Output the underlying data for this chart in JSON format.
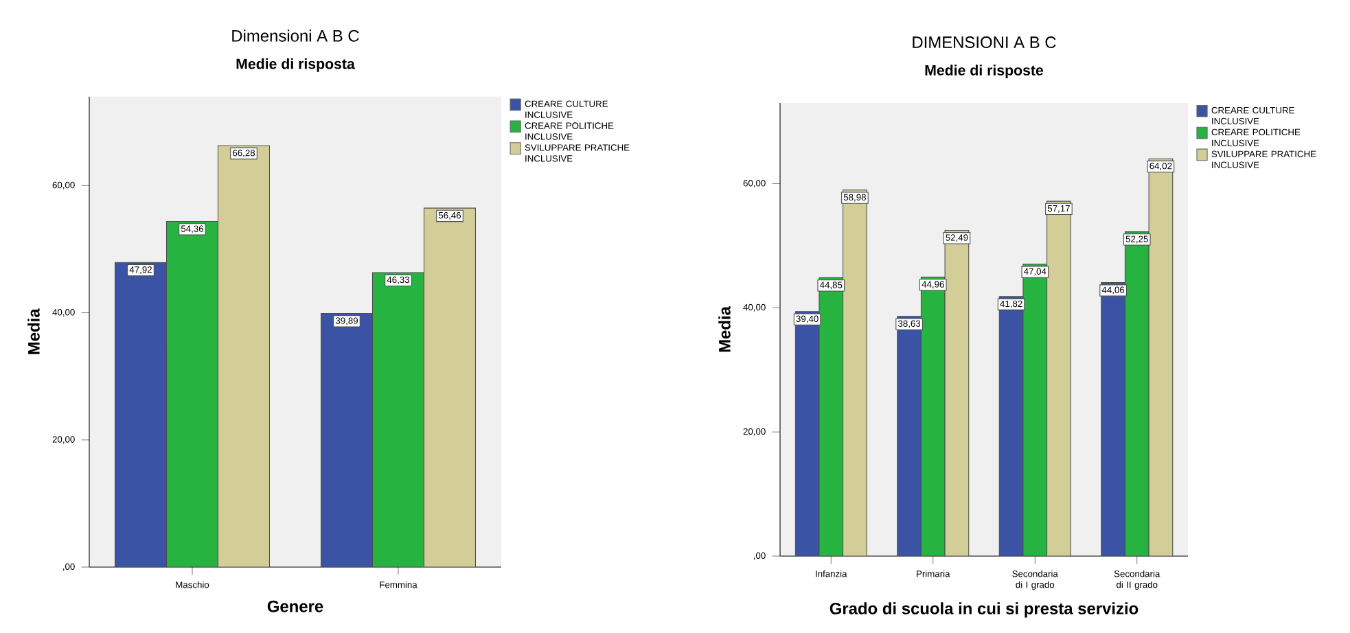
{
  "chart_data": [
    {
      "type": "bar",
      "title": "Dimensioni A B C",
      "subtitle": "Medie di risposta",
      "xlabel": "Genere",
      "ylabel": "Media",
      "categories": [
        "Maschio",
        "Femmina"
      ],
      "series": [
        {
          "name": "CREARE CULTURE INCLUSIVE",
          "color": "#3b53a4",
          "values": [
            47.92,
            39.89
          ],
          "value_labels": [
            "47,92",
            "39,89"
          ]
        },
        {
          "name": "CREARE POLITICHE INCLUSIVE",
          "color": "#27b33f",
          "values": [
            54.36,
            46.33
          ],
          "value_labels": [
            "54,36",
            "46,33"
          ]
        },
        {
          "name": "SVILUPPARE PRATICHE INCLUSIVE",
          "color": "#d3ce97",
          "values": [
            66.28,
            56.46
          ],
          "value_labels": [
            "66,28",
            "56,46"
          ]
        }
      ],
      "ylim": [
        0,
        74
      ],
      "yticks": [
        {
          "value": 0,
          "label": ",00"
        },
        {
          "value": 20,
          "label": "20,00"
        },
        {
          "value": 40,
          "label": "40,00"
        },
        {
          "value": 60,
          "label": "60,00"
        }
      ],
      "legend": "right"
    },
    {
      "type": "bar",
      "title": "DIMENSIONI A B C",
      "subtitle": "Medie di risposte",
      "xlabel": "Grado di scuola in cui si presta servizio",
      "ylabel": "Media",
      "categories": [
        "Infanzia",
        "Primaria",
        "Secondaria di I grado",
        "Secondaria di II grado"
      ],
      "series": [
        {
          "name": "CREARE CULTURE INCLUSIVE",
          "color": "#3b53a4",
          "values": [
            39.4,
            38.63,
            41.82,
            44.06
          ],
          "value_labels": [
            "39,40",
            "38,63",
            "41,82",
            "44,06"
          ]
        },
        {
          "name": "CREARE POLITICHE INCLUSIVE",
          "color": "#27b33f",
          "values": [
            44.85,
            44.96,
            47.04,
            52.25
          ],
          "value_labels": [
            "44,85",
            "44,96",
            "47,04",
            "52,25"
          ]
        },
        {
          "name": "SVILUPPARE PRATICHE INCLUSIVE",
          "color": "#d3ce97",
          "values": [
            58.98,
            52.49,
            57.17,
            64.02
          ],
          "value_labels": [
            "58,98",
            "52,49",
            "57,17",
            "64,02"
          ]
        }
      ],
      "ylim": [
        0,
        73
      ],
      "yticks": [
        {
          "value": 0,
          "label": ",00"
        },
        {
          "value": 20,
          "label": "20,00"
        },
        {
          "value": 40,
          "label": "40,00"
        },
        {
          "value": 60,
          "label": "60,00"
        }
      ],
      "legend": "right"
    }
  ]
}
